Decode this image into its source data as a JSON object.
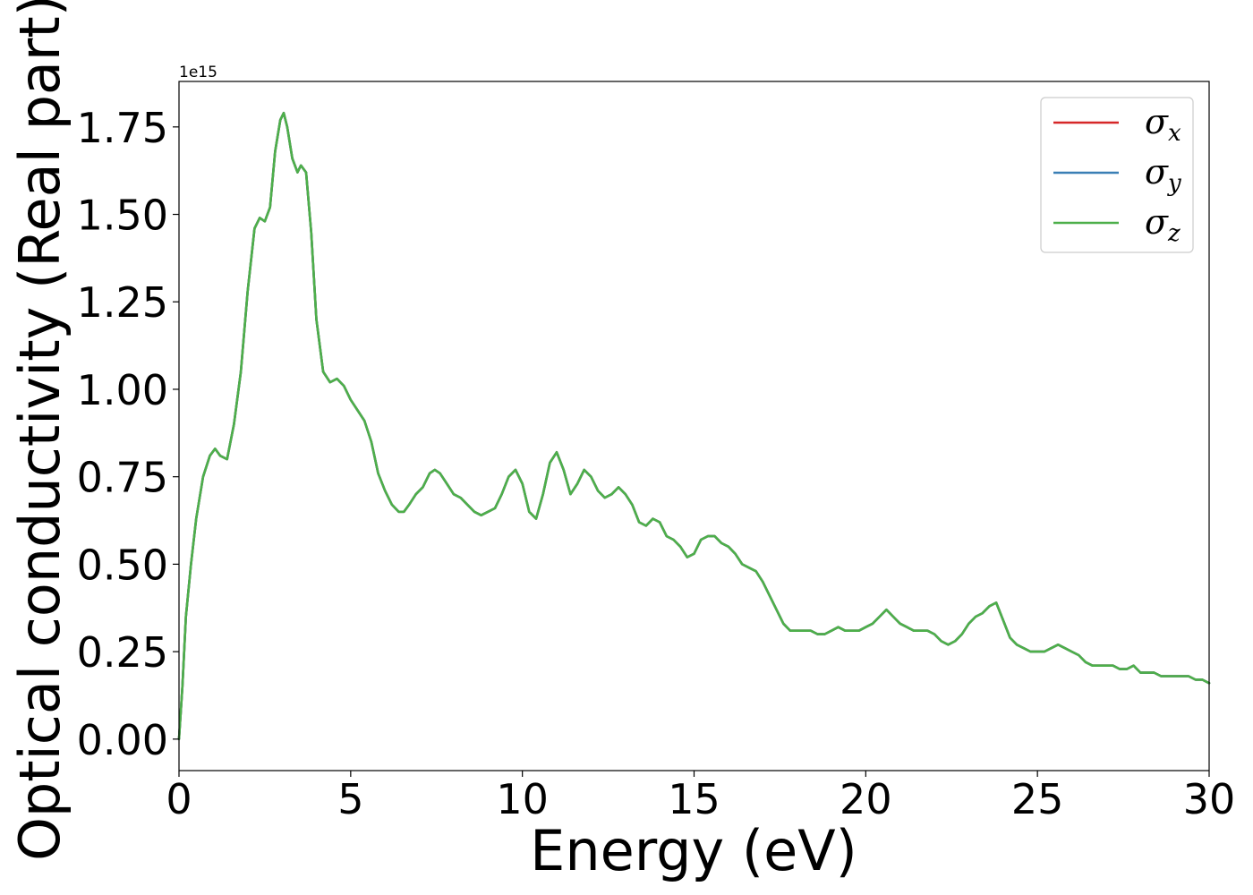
{
  "chart_data": {
    "type": "line",
    "xlabel": "Energy (eV)",
    "ylabel": "Optical conductivity (Real part)",
    "y_offset_label": "1e15",
    "xlim": [
      0,
      30
    ],
    "ylim": [
      -0.09,
      1.88
    ],
    "x_ticks": [
      0,
      5,
      10,
      15,
      20,
      25,
      30
    ],
    "x_tick_labels": [
      "0",
      "5",
      "10",
      "15",
      "20",
      "25",
      "30"
    ],
    "y_ticks": [
      0.0,
      0.25,
      0.5,
      0.75,
      1.0,
      1.25,
      1.5,
      1.75
    ],
    "y_tick_labels": [
      "0.00",
      "0.25",
      "0.50",
      "0.75",
      "1.00",
      "1.25",
      "1.50",
      "1.75"
    ],
    "grid": false,
    "legend_position": "top-right",
    "series": [
      {
        "symbol": "σ",
        "subscript": "x",
        "color": "#d62728"
      },
      {
        "symbol": "σ",
        "subscript": "y",
        "color": "#3a7fb5"
      },
      {
        "symbol": "σ",
        "subscript": "z",
        "color": "#4daf4a"
      }
    ],
    "x": [
      0,
      0.1,
      0.2,
      0.35,
      0.5,
      0.7,
      0.9,
      1.05,
      1.2,
      1.4,
      1.6,
      1.8,
      2.0,
      2.2,
      2.35,
      2.5,
      2.65,
      2.8,
      2.95,
      3.05,
      3.15,
      3.3,
      3.45,
      3.55,
      3.7,
      3.85,
      4.0,
      4.2,
      4.4,
      4.6,
      4.8,
      5.0,
      5.2,
      5.4,
      5.6,
      5.8,
      6.0,
      6.2,
      6.4,
      6.55,
      6.7,
      6.9,
      7.1,
      7.3,
      7.45,
      7.6,
      7.8,
      8.0,
      8.2,
      8.4,
      8.6,
      8.8,
      9.0,
      9.2,
      9.4,
      9.6,
      9.8,
      10.0,
      10.2,
      10.4,
      10.6,
      10.8,
      11.0,
      11.2,
      11.4,
      11.6,
      11.8,
      12.0,
      12.2,
      12.4,
      12.6,
      12.8,
      13.0,
      13.2,
      13.4,
      13.6,
      13.8,
      14.0,
      14.2,
      14.4,
      14.6,
      14.8,
      15.0,
      15.2,
      15.4,
      15.6,
      15.8,
      16.0,
      16.2,
      16.4,
      16.6,
      16.8,
      17.0,
      17.2,
      17.4,
      17.6,
      17.8,
      18.0,
      18.2,
      18.4,
      18.6,
      18.8,
      19.0,
      19.2,
      19.4,
      19.6,
      19.8,
      20.0,
      20.2,
      20.4,
      20.6,
      20.8,
      21.0,
      21.2,
      21.4,
      21.6,
      21.8,
      22.0,
      22.2,
      22.4,
      22.6,
      22.8,
      23.0,
      23.2,
      23.4,
      23.6,
      23.8,
      24.0,
      24.2,
      24.4,
      24.6,
      24.8,
      25.0,
      25.2,
      25.4,
      25.6,
      25.8,
      26.0,
      26.2,
      26.4,
      26.6,
      26.8,
      27.0,
      27.2,
      27.4,
      27.6,
      27.8,
      28.0,
      28.2,
      28.4,
      28.6,
      28.8,
      29.0,
      29.2,
      29.4,
      29.6,
      29.8,
      30.0
    ],
    "y": [
      0.0,
      0.15,
      0.35,
      0.5,
      0.63,
      0.75,
      0.81,
      0.83,
      0.81,
      0.8,
      0.9,
      1.05,
      1.28,
      1.46,
      1.49,
      1.48,
      1.52,
      1.68,
      1.77,
      1.79,
      1.75,
      1.66,
      1.62,
      1.64,
      1.62,
      1.45,
      1.2,
      1.05,
      1.02,
      1.03,
      1.01,
      0.97,
      0.94,
      0.91,
      0.85,
      0.76,
      0.71,
      0.67,
      0.65,
      0.65,
      0.67,
      0.7,
      0.72,
      0.76,
      0.77,
      0.76,
      0.73,
      0.7,
      0.69,
      0.67,
      0.65,
      0.64,
      0.65,
      0.66,
      0.7,
      0.75,
      0.77,
      0.73,
      0.65,
      0.63,
      0.7,
      0.79,
      0.82,
      0.77,
      0.7,
      0.73,
      0.77,
      0.75,
      0.71,
      0.69,
      0.7,
      0.72,
      0.7,
      0.67,
      0.62,
      0.61,
      0.63,
      0.62,
      0.58,
      0.57,
      0.55,
      0.52,
      0.53,
      0.57,
      0.58,
      0.58,
      0.56,
      0.55,
      0.53,
      0.5,
      0.49,
      0.48,
      0.45,
      0.41,
      0.37,
      0.33,
      0.31,
      0.31,
      0.31,
      0.31,
      0.3,
      0.3,
      0.31,
      0.32,
      0.31,
      0.31,
      0.31,
      0.32,
      0.33,
      0.35,
      0.37,
      0.35,
      0.33,
      0.32,
      0.31,
      0.31,
      0.31,
      0.3,
      0.28,
      0.27,
      0.28,
      0.3,
      0.33,
      0.35,
      0.36,
      0.38,
      0.39,
      0.34,
      0.29,
      0.27,
      0.26,
      0.25,
      0.25,
      0.25,
      0.26,
      0.27,
      0.26,
      0.25,
      0.24,
      0.22,
      0.21,
      0.21,
      0.21,
      0.21,
      0.2,
      0.2,
      0.21,
      0.19,
      0.19,
      0.19,
      0.18,
      0.18,
      0.18,
      0.18,
      0.18,
      0.17,
      0.17,
      0.16
    ]
  }
}
